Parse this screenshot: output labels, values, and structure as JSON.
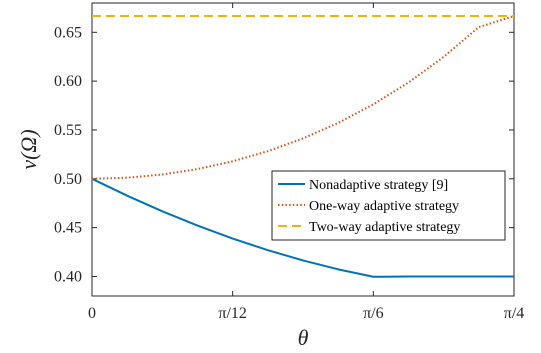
{
  "chart_data": {
    "type": "line",
    "title": "",
    "xlabel": "θ",
    "ylabel": "v(Ω)",
    "xlim": [
      0,
      0.7853981634
    ],
    "ylim": [
      0.38,
      0.68
    ],
    "x_ticks": [
      0,
      0.2617993878,
      0.5235987756,
      0.7853981634
    ],
    "x_tick_labels": [
      "0",
      "π/12",
      "π/6",
      "π/4"
    ],
    "y_ticks": [
      0.4,
      0.45,
      0.5,
      0.55,
      0.6,
      0.65
    ],
    "y_tick_labels": [
      "0.40",
      "0.45",
      "0.50",
      "0.55",
      "0.60",
      "0.65"
    ],
    "grid": false,
    "legend_position": "right",
    "series": [
      {
        "name": "Nonadaptive strategy [9]",
        "color": "#0072BD",
        "style": "solid",
        "x": [
          0,
          0.0654498469,
          0.1308996939,
          0.1963495408,
          0.2617993878,
          0.3272492347,
          0.3926990817,
          0.4581489286,
          0.5235987756,
          0.5890486225,
          0.6544984695,
          0.7199483164,
          0.7853981634
        ],
        "y": [
          0.5,
          0.4827,
          0.4667,
          0.4521,
          0.4388,
          0.4269,
          0.4164,
          0.4073,
          0.3997,
          0.4,
          0.4,
          0.4,
          0.4
        ]
      },
      {
        "name": "One-way adaptive strategy",
        "color": "#D95319",
        "style": "dotted",
        "x": [
          0,
          0.0654498469,
          0.1308996939,
          0.1963495408,
          0.2617993878,
          0.3272492347,
          0.3926990817,
          0.4581489286,
          0.5235987756,
          0.5890486225,
          0.6544984695,
          0.7199483164,
          0.7853981634
        ],
        "y": [
          0.5,
          0.5011,
          0.5044,
          0.51,
          0.5179,
          0.5283,
          0.5413,
          0.5572,
          0.5762,
          0.5986,
          0.6248,
          0.6553,
          0.6667
        ]
      },
      {
        "name": "Two-way adaptive strategy",
        "color": "#EDB120",
        "style": "dashed",
        "x": [
          0,
          0.7853981634
        ],
        "y": [
          0.6667,
          0.6667
        ]
      }
    ]
  }
}
